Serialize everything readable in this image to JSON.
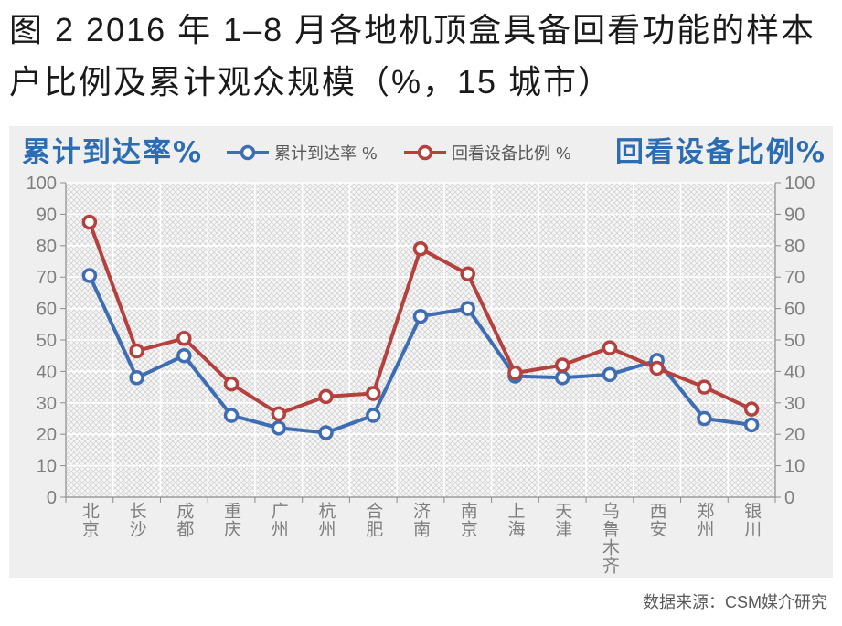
{
  "title": {
    "line1": "图 2 2016 年 1–8 月各地机顶盒具备回看功能的样本",
    "line2": "户比例及累计观众规模（%，15 城市）"
  },
  "source": "数据来源：CSM媒介研究",
  "colors": {
    "axis_title": "#2b6cb2",
    "panel": "#efefef",
    "text": "#1a1a1a"
  },
  "chart_data": {
    "type": "line",
    "categories": [
      "北京",
      "长沙",
      "成都",
      "重庆",
      "广州",
      "杭州",
      "合肥",
      "济南",
      "南京",
      "上海",
      "天津",
      "乌鲁木齐",
      "西安",
      "郑州",
      "银川"
    ],
    "series": [
      {
        "name": "累计到达率 %",
        "axis": "left",
        "color": "#3f6db3",
        "values": [
          70.5,
          38,
          45,
          26,
          22,
          20.5,
          26,
          57.5,
          60,
          38.5,
          38,
          39,
          43.5,
          25,
          23
        ]
      },
      {
        "name": "回看设备比例 %",
        "axis": "right",
        "color": "#b5413f",
        "values": [
          87.5,
          46.5,
          50.5,
          36,
          26.5,
          32,
          33,
          79,
          71,
          39.5,
          42,
          47.5,
          41,
          35,
          28
        ]
      }
    ],
    "ylabel": "累计到达率%",
    "ylabel_right": "回看设备比例%",
    "ylim": [
      0,
      100
    ],
    "ylim_right": [
      0,
      100
    ],
    "yticks": [
      0,
      10,
      20,
      30,
      40,
      50,
      60,
      70,
      80,
      90,
      100
    ],
    "yticks_right": [
      0,
      10,
      20,
      30,
      40,
      50,
      60,
      70,
      80,
      90,
      100
    ],
    "grid": true,
    "markers": "circle",
    "legend": "top"
  }
}
